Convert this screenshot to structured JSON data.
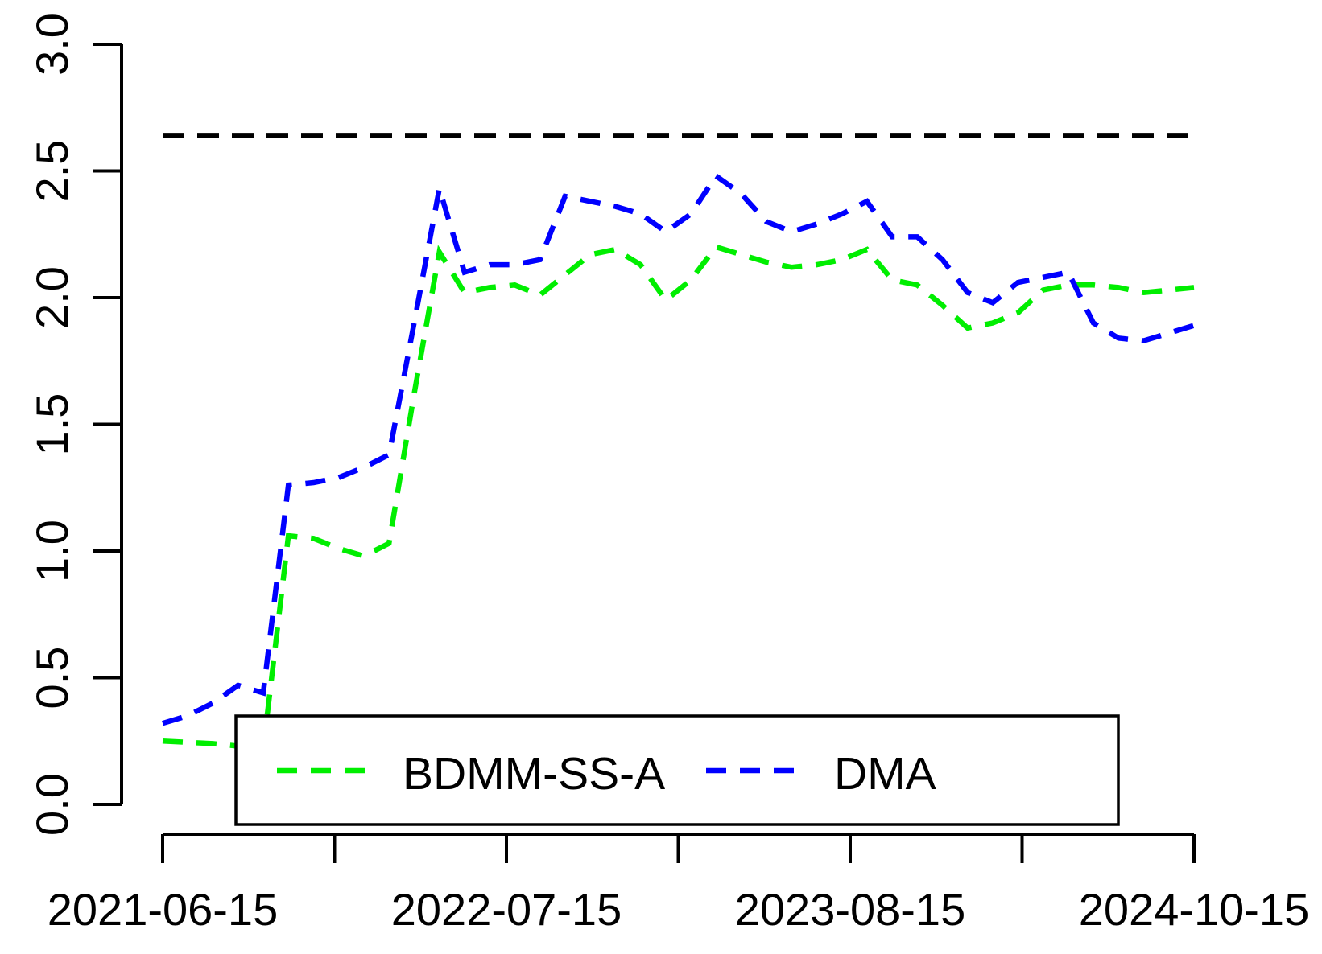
{
  "chart_data": {
    "type": "line",
    "title": "",
    "xlabel": "",
    "ylabel": "",
    "ylim": [
      0.0,
      3.0
    ],
    "grid": false,
    "legend_position": "bottom-inside",
    "y_tick_labels": [
      "3.0",
      "2.5",
      "2.0",
      "1.5",
      "1.0",
      "0.5",
      "0.0"
    ],
    "y_tick_values": [
      3.0,
      2.5,
      2.0,
      1.5,
      1.0,
      0.5,
      0.0
    ],
    "x_axis_tick_count": 7,
    "x_tick_labels": [
      "2021-06-15",
      "2022-07-15",
      "2023-08-15",
      "2024-10-15"
    ],
    "x_tick_label_positions": [
      0,
      2,
      4,
      6
    ],
    "x": [
      "2021-06-15",
      "2021-07-15",
      "2021-08-15",
      "2021-09-15",
      "2021-10-15",
      "2021-11-15",
      "2021-12-15",
      "2022-01-15",
      "2022-02-15",
      "2022-03-15",
      "2022-04-15",
      "2022-05-15",
      "2022-06-15",
      "2022-07-15",
      "2022-08-15",
      "2022-09-15",
      "2022-10-15",
      "2022-11-15",
      "2022-12-15",
      "2023-01-15",
      "2023-02-15",
      "2023-03-15",
      "2023-04-15",
      "2023-05-15",
      "2023-06-15",
      "2023-07-15",
      "2023-08-15",
      "2023-09-15",
      "2023-10-15",
      "2023-11-15",
      "2023-12-15",
      "2024-01-15",
      "2024-02-15",
      "2024-03-15",
      "2024-04-15",
      "2024-05-15",
      "2024-06-15",
      "2024-07-15",
      "2024-08-15",
      "2024-09-15",
      "2024-10-15",
      "2024-11-15"
    ],
    "series": [
      {
        "name": "BDMM-SS-A",
        "color": "#00EE00",
        "dash": "dashed",
        "values": [
          0.25,
          0.245,
          0.24,
          0.23,
          0.22,
          1.06,
          1.05,
          1.01,
          0.98,
          1.03,
          1.62,
          2.18,
          2.02,
          2.04,
          2.05,
          2.01,
          2.09,
          2.17,
          2.19,
          2.13,
          1.99,
          2.07,
          2.2,
          2.17,
          2.14,
          2.12,
          2.13,
          2.15,
          2.19,
          2.07,
          2.05,
          1.97,
          1.88,
          1.9,
          1.94,
          2.03,
          2.05,
          2.05,
          2.04,
          2.02,
          2.03,
          2.04
        ]
      },
      {
        "name": "DMA",
        "color": "#0000FF",
        "dash": "dashed",
        "values": [
          0.32,
          0.35,
          0.4,
          0.47,
          0.44,
          1.26,
          1.27,
          1.29,
          1.33,
          1.38,
          1.9,
          2.43,
          2.1,
          2.13,
          2.13,
          2.15,
          2.4,
          2.38,
          2.36,
          2.33,
          2.26,
          2.33,
          2.48,
          2.41,
          2.3,
          2.26,
          2.29,
          2.33,
          2.38,
          2.24,
          2.24,
          2.15,
          2.02,
          1.98,
          2.06,
          2.08,
          2.1,
          1.9,
          1.84,
          1.83,
          1.86,
          1.89
        ]
      }
    ],
    "reference_line": {
      "value": 2.64,
      "color": "#000000",
      "dash": "long-dashed"
    },
    "legend": {
      "entries": [
        "BDMM-SS-A",
        "DMA"
      ]
    }
  }
}
